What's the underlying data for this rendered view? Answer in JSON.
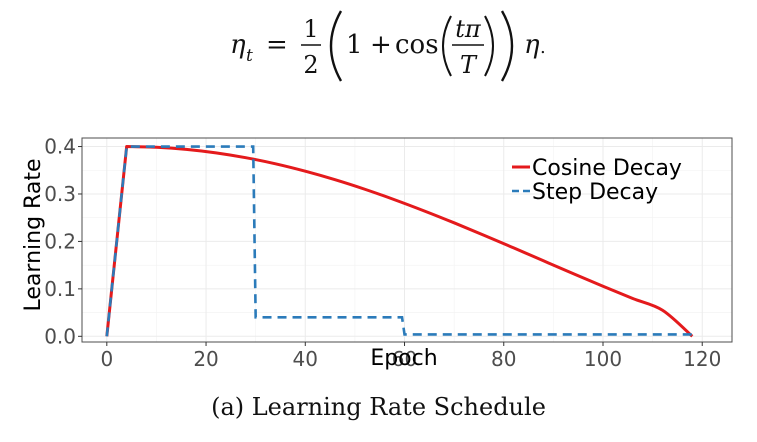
{
  "formula": {
    "lhs_base": "η",
    "lhs_sub": "t",
    "equals": "=",
    "frac_num": "1",
    "frac_den": "2",
    "inner_one": "1",
    "plus": "+",
    "cos": "cos",
    "arg_num": "tπ",
    "arg_den": "T",
    "rhs": "η",
    "trailing": "."
  },
  "caption": "(a) Learning Rate Schedule",
  "chart_data": {
    "type": "line",
    "xlabel": "Epoch",
    "ylabel": "Learning Rate",
    "xlim": [
      -5,
      126
    ],
    "ylim": [
      -0.012,
      0.418
    ],
    "xticks": [
      0,
      20,
      40,
      60,
      80,
      100,
      120
    ],
    "xtick_labels": [
      "0",
      "20",
      "40",
      "60",
      "80",
      "100",
      "120"
    ],
    "yticks": [
      0.0,
      0.1,
      0.2,
      0.3,
      0.4
    ],
    "ytick_labels": [
      "0.0",
      "0.1",
      "0.2",
      "0.3",
      "0.4"
    ],
    "grid": true,
    "legend_position": "top-right",
    "series": [
      {
        "name": "Cosine Decay",
        "color": "#e41a1c",
        "style": "solid",
        "x": [
          0,
          4,
          10,
          16,
          22,
          28,
          34,
          40,
          46,
          52,
          58,
          64,
          70,
          76,
          82,
          88,
          94,
          100,
          106,
          112,
          118
        ],
        "y": [
          0,
          0.4,
          0.3985,
          0.3941,
          0.3867,
          0.3765,
          0.3636,
          0.348,
          0.3301,
          0.31,
          0.2879,
          0.2642,
          0.2392,
          0.2131,
          0.1863,
          0.1592,
          0.1322,
          0.1055,
          0.0797,
          0.055,
          0.0
        ]
      },
      {
        "name": "Step Decay",
        "color": "#2b7bba",
        "style": "dashed",
        "x": [
          0,
          4,
          29.5,
          30,
          59.5,
          60,
          118
        ],
        "y": [
          0,
          0.4,
          0.4,
          0.04,
          0.04,
          0.004,
          0.004
        ]
      }
    ]
  }
}
